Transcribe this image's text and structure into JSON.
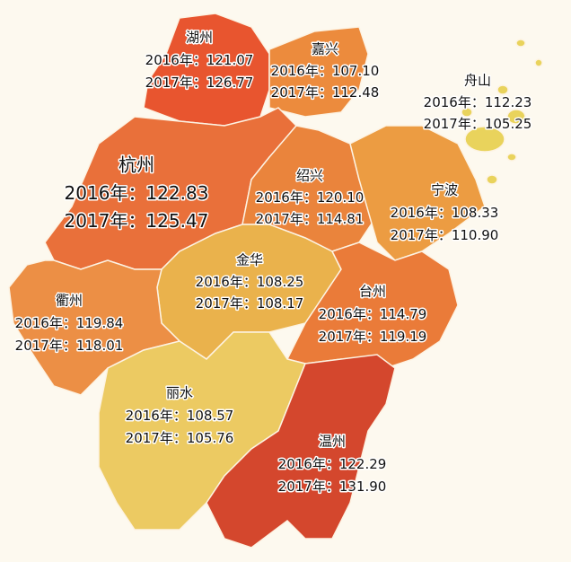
{
  "year_labels": [
    "2016年：",
    "2017年："
  ],
  "regions": [
    {
      "name": "湖州",
      "color": "#e8552f",
      "values": [
        "121.07",
        "126.77"
      ]
    },
    {
      "name": "嘉兴",
      "color": "#ec8b3d",
      "values": [
        "107.10",
        "112.48"
      ]
    },
    {
      "name": "舟山",
      "color": "#e9d35c",
      "values": [
        "112.23",
        "105.25"
      ]
    },
    {
      "name": "杭州",
      "color": "#e9703a",
      "values": [
        "122.83",
        "125.47"
      ]
    },
    {
      "name": "绍兴",
      "color": "#ea843c",
      "values": [
        "120.10",
        "114.81"
      ]
    },
    {
      "name": "宁波",
      "color": "#ec9c42",
      "values": [
        "108.33",
        "110.90"
      ]
    },
    {
      "name": "金华",
      "color": "#eab24c",
      "values": [
        "108.25",
        "108.17"
      ]
    },
    {
      "name": "台州",
      "color": "#ea7b39",
      "values": [
        "114.79",
        "119.19"
      ]
    },
    {
      "name": "衢州",
      "color": "#ec8f45",
      "values": [
        "119.84",
        "118.01"
      ]
    },
    {
      "name": "丽水",
      "color": "#ecca62",
      "values": [
        "108.57",
        "105.76"
      ]
    },
    {
      "name": "温州",
      "color": "#d4472d",
      "values": [
        "122.29",
        "131.90"
      ]
    }
  ]
}
